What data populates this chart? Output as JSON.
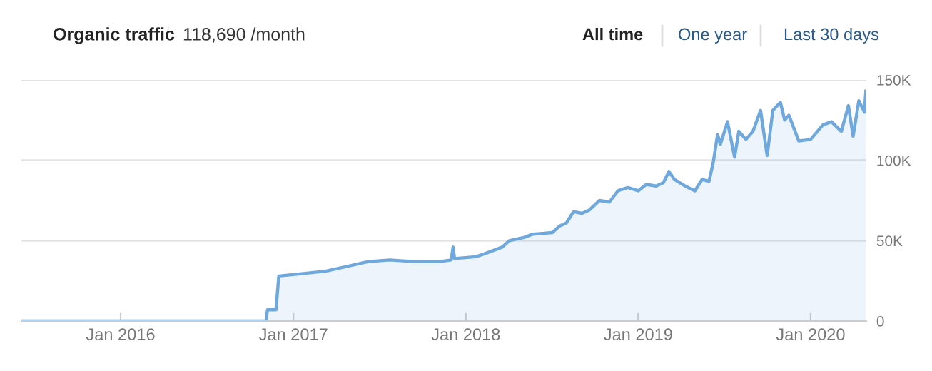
{
  "chart_data": {
    "type": "area",
    "title": "Organic traffic",
    "subtitle": "118,690 /month",
    "annotations": [
      "i",
      "All time",
      "One year",
      "Last 30 days"
    ],
    "x": [
      "2015-06-05",
      "2016-11-04",
      "2016-11-07",
      "2016-11-25",
      "2016-12-01",
      "2017-01-04",
      "2017-03-10",
      "2017-05-10",
      "2017-06-09",
      "2017-07-24",
      "2017-09-13",
      "2017-11-07",
      "2017-12-01",
      "2017-12-05",
      "2017-12-08",
      "2017-12-13",
      "2018-01-22",
      "2018-02-11",
      "2018-03-19",
      "2018-04-03",
      "2018-05-04",
      "2018-05-22",
      "2018-07-03",
      "2018-07-18",
      "2018-08-02",
      "2018-08-17",
      "2018-09-04",
      "2018-09-19",
      "2018-10-11",
      "2018-11-01",
      "2018-11-19",
      "2018-12-10",
      "2019-01-01",
      "2019-01-18",
      "2019-02-08",
      "2019-02-23",
      "2019-03-07",
      "2019-03-19",
      "2019-04-10",
      "2019-05-01",
      "2019-05-16",
      "2019-05-31",
      "2019-06-09",
      "2019-06-18",
      "2019-06-24",
      "2019-07-09",
      "2019-07-24",
      "2019-08-02",
      "2019-08-17",
      "2019-09-01",
      "2019-09-17",
      "2019-10-01",
      "2019-10-13",
      "2019-10-29",
      "2019-11-07",
      "2019-11-16",
      "2019-12-07",
      "2020-01-01",
      "2020-01-27",
      "2020-02-14",
      "2020-03-06",
      "2020-03-21",
      "2020-03-31",
      "2020-04-12",
      "2020-04-24",
      "2020-04-27"
    ],
    "series": [
      {
        "color": "#6fa8dc",
        "values": [
          0,
          0,
          7000,
          7000,
          28000,
          29000,
          31000,
          35000,
          37000,
          38000,
          37000,
          37000,
          38000,
          46000,
          39000,
          39000,
          40000,
          42000,
          46000,
          50000,
          52000,
          54000,
          55000,
          59000,
          61000,
          68000,
          67000,
          69000,
          75000,
          74000,
          81000,
          83000,
          81000,
          85000,
          84000,
          86000,
          93000,
          88000,
          84000,
          81000,
          88000,
          87000,
          99000,
          116000,
          110000,
          124000,
          102000,
          118000,
          113000,
          118000,
          131000,
          103000,
          131000,
          136000,
          125000,
          128000,
          112000,
          113000,
          122000,
          124000,
          118000,
          134000,
          115000,
          137000,
          130000,
          143000
        ]
      }
    ],
    "xlim": [
      "2015-06-05",
      "2020-04-28"
    ],
    "xticks": [
      {
        "value": "2016-01-01",
        "label": "Jan 2016"
      },
      {
        "value": "2017-01-01",
        "label": "Jan 2017"
      },
      {
        "value": "2018-01-01",
        "label": "Jan 2018"
      },
      {
        "value": "2019-01-01",
        "label": "Jan 2019"
      },
      {
        "value": "2020-01-01",
        "label": "Jan 2020"
      }
    ],
    "ylim": [
      0,
      150000
    ],
    "yticks": [
      0,
      {
        "value": 50000,
        "label": "50K"
      },
      {
        "value": 100000,
        "label": "100K"
      },
      {
        "value": 150000,
        "label": "150K"
      }
    ],
    "grid": "y"
  }
}
